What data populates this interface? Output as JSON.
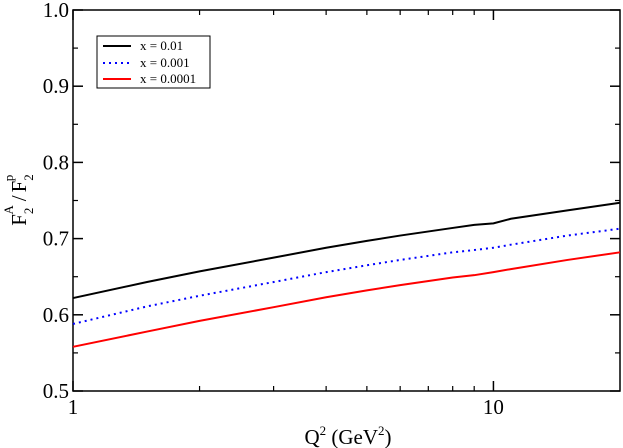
{
  "chart_data": {
    "type": "line",
    "title": "",
    "xscale": "log",
    "xlim": [
      1,
      20
    ],
    "ylim": [
      0.5,
      1.0
    ],
    "x_ticks": [
      {
        "value": 1,
        "label": "1"
      },
      {
        "value": 10,
        "label": "10"
      }
    ],
    "y_ticks": [
      {
        "value": 0.5,
        "label": "0.5"
      },
      {
        "value": 0.6,
        "label": "0.6"
      },
      {
        "value": 0.7,
        "label": "0.7"
      },
      {
        "value": 0.8,
        "label": "0.8"
      },
      {
        "value": 0.9,
        "label": "0.9"
      },
      {
        "value": 1.0,
        "label": "1.0"
      }
    ],
    "xlabel": {
      "base": "Q",
      "sup": "2",
      "unit_open": " (GeV",
      "unit_sup": "2",
      "unit_close": ")"
    },
    "ylabel": {
      "num_base": "F",
      "num_sub": "2",
      "num_sup": "A",
      "slash": "/",
      "den_base": "F",
      "den_sub": "2",
      "den_sup": "p"
    },
    "legend_position": "top-left",
    "series": [
      {
        "name": "x = 0.01",
        "color": "#000000",
        "style": "solid",
        "x": [
          1,
          1.5,
          2,
          3,
          4,
          5,
          6,
          8,
          9,
          10,
          11,
          15,
          20
        ],
        "y": [
          0.622,
          0.643,
          0.657,
          0.675,
          0.688,
          0.697,
          0.704,
          0.714,
          0.718,
          0.72,
          0.726,
          0.737,
          0.747
        ]
      },
      {
        "name": "x = 0.001",
        "color": "#0000ff",
        "style": "dotted",
        "x": [
          1,
          1.5,
          2,
          3,
          4,
          5,
          6,
          8,
          9,
          10,
          11,
          15,
          20
        ],
        "y": [
          0.588,
          0.611,
          0.625,
          0.643,
          0.656,
          0.665,
          0.672,
          0.682,
          0.685,
          0.688,
          0.692,
          0.704,
          0.713
        ]
      },
      {
        "name": "x = 0.0001",
        "color": "#ff0000",
        "style": "solid",
        "x": [
          1,
          1.5,
          2,
          3,
          4,
          5,
          6,
          8,
          9,
          10,
          11,
          15,
          20
        ],
        "y": [
          0.558,
          0.578,
          0.592,
          0.61,
          0.623,
          0.632,
          0.639,
          0.649,
          0.652,
          0.656,
          0.66,
          0.672,
          0.682
        ]
      }
    ]
  }
}
